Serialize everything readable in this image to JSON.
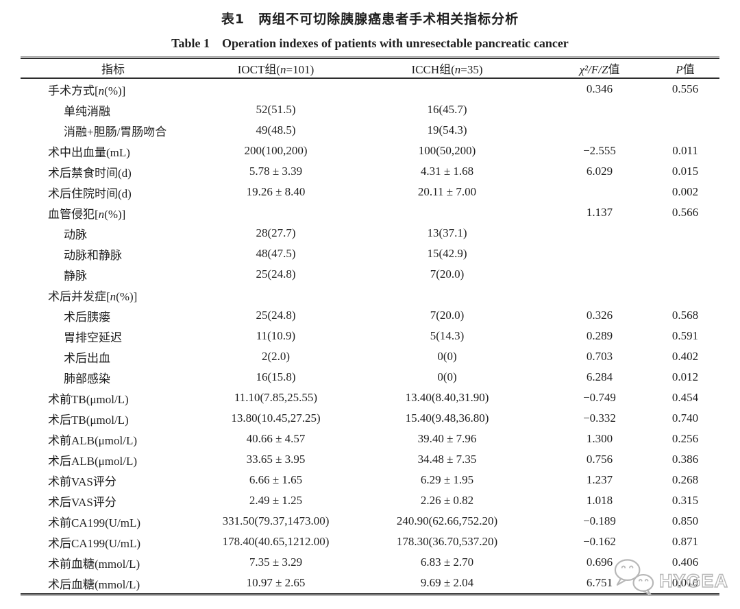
{
  "title_cn": "表1　两组不可切除胰腺癌患者手术相关指标分析",
  "title_en": "Table 1　Operation indexes of patients with unresectable pancreatic cancer",
  "table": {
    "headers": [
      "指标",
      "IOCT组(n=101)",
      "ICCH组(n=35)",
      "χ²/F/Z值",
      "P值"
    ],
    "rows": [
      {
        "label": "手术方式[n(%)]",
        "indent": 0,
        "ioct": "",
        "icch": "",
        "chi": "0.346",
        "p": "0.556"
      },
      {
        "label": "单纯消融",
        "indent": 1,
        "ioct": "52(51.5)",
        "icch": "16(45.7)",
        "chi": "",
        "p": ""
      },
      {
        "label": "消融+胆肠/胃肠吻合",
        "indent": 1,
        "ioct": "49(48.5)",
        "icch": "19(54.3)",
        "chi": "",
        "p": ""
      },
      {
        "label": "术中出血量(mL)",
        "indent": 0,
        "ioct": "200(100,200)",
        "icch": "100(50,200)",
        "chi": "−2.555",
        "p": "0.011"
      },
      {
        "label": "术后禁食时间(d)",
        "indent": 0,
        "ioct": "5.78 ± 3.39",
        "icch": "4.31 ± 1.68",
        "chi": "6.029",
        "p": "0.015"
      },
      {
        "label": "术后住院时间(d)",
        "indent": 0,
        "ioct": "19.26 ± 8.40",
        "icch": "20.11 ± 7.00",
        "chi": "",
        "p": "0.002"
      },
      {
        "label": "血管侵犯[n(%)]",
        "indent": 0,
        "ioct": "",
        "icch": "",
        "chi": "1.137",
        "p": "0.566"
      },
      {
        "label": "动脉",
        "indent": 1,
        "ioct": "28(27.7)",
        "icch": "13(37.1)",
        "chi": "",
        "p": ""
      },
      {
        "label": "动脉和静脉",
        "indent": 1,
        "ioct": "48(47.5)",
        "icch": "15(42.9)",
        "chi": "",
        "p": ""
      },
      {
        "label": "静脉",
        "indent": 1,
        "ioct": "25(24.8)",
        "icch": "7(20.0)",
        "chi": "",
        "p": ""
      },
      {
        "label": "术后并发症[n(%)]",
        "indent": 0,
        "ioct": "",
        "icch": "",
        "chi": "",
        "p": ""
      },
      {
        "label": "术后胰瘘",
        "indent": 1,
        "ioct": "25(24.8)",
        "icch": "7(20.0)",
        "chi": "0.326",
        "p": "0.568"
      },
      {
        "label": "胃排空延迟",
        "indent": 1,
        "ioct": "11(10.9)",
        "icch": "5(14.3)",
        "chi": "0.289",
        "p": "0.591"
      },
      {
        "label": "术后出血",
        "indent": 1,
        "ioct": "2(2.0)",
        "icch": "0(0)",
        "chi": "0.703",
        "p": "0.402"
      },
      {
        "label": "肺部感染",
        "indent": 1,
        "ioct": "16(15.8)",
        "icch": "0(0)",
        "chi": "6.284",
        "p": "0.012"
      },
      {
        "label": "术前TB(μmol/L)",
        "indent": 0,
        "ioct": "11.10(7.85,25.55)",
        "icch": "13.40(8.40,31.90)",
        "chi": "−0.749",
        "p": "0.454"
      },
      {
        "label": "术后TB(μmol/L)",
        "indent": 0,
        "ioct": "13.80(10.45,27.25)",
        "icch": "15.40(9.48,36.80)",
        "chi": "−0.332",
        "p": "0.740"
      },
      {
        "label": "术前ALB(μmol/L)",
        "indent": 0,
        "ioct": "40.66 ± 4.57",
        "icch": "39.40 ± 7.96",
        "chi": "1.300",
        "p": "0.256"
      },
      {
        "label": "术后ALB(μmol/L)",
        "indent": 0,
        "ioct": "33.65 ± 3.95",
        "icch": "34.48 ± 7.35",
        "chi": "0.756",
        "p": "0.386"
      },
      {
        "label": "术前VAS评分",
        "indent": 0,
        "ioct": "6.66 ± 1.65",
        "icch": "6.29 ± 1.95",
        "chi": "1.237",
        "p": "0.268"
      },
      {
        "label": "术后VAS评分",
        "indent": 0,
        "ioct": "2.49 ± 1.25",
        "icch": "2.26 ± 0.82",
        "chi": "1.018",
        "p": "0.315"
      },
      {
        "label": "术前CA199(U/mL)",
        "indent": 0,
        "ioct": "331.50(79.37,1473.00)",
        "icch": "240.90(62.66,752.20)",
        "chi": "−0.189",
        "p": "0.850"
      },
      {
        "label": "术后CA199(U/mL)",
        "indent": 0,
        "ioct": "178.40(40.65,1212.00)",
        "icch": "178.30(36.70,537.20)",
        "chi": "−0.162",
        "p": "0.871"
      },
      {
        "label": "术前血糖(mmol/L)",
        "indent": 0,
        "ioct": "7.35 ± 3.29",
        "icch": "6.83 ± 2.70",
        "chi": "0.696",
        "p": "0.406"
      },
      {
        "label": "术后血糖(mmol/L)",
        "indent": 0,
        "ioct": "10.97 ± 2.65",
        "icch": "9.69 ± 2.04",
        "chi": "6.751",
        "p": "0.010"
      }
    ]
  },
  "watermark": {
    "text": "HYGEA",
    "icon": "wechat-icon",
    "color": "#b7b7b7"
  }
}
